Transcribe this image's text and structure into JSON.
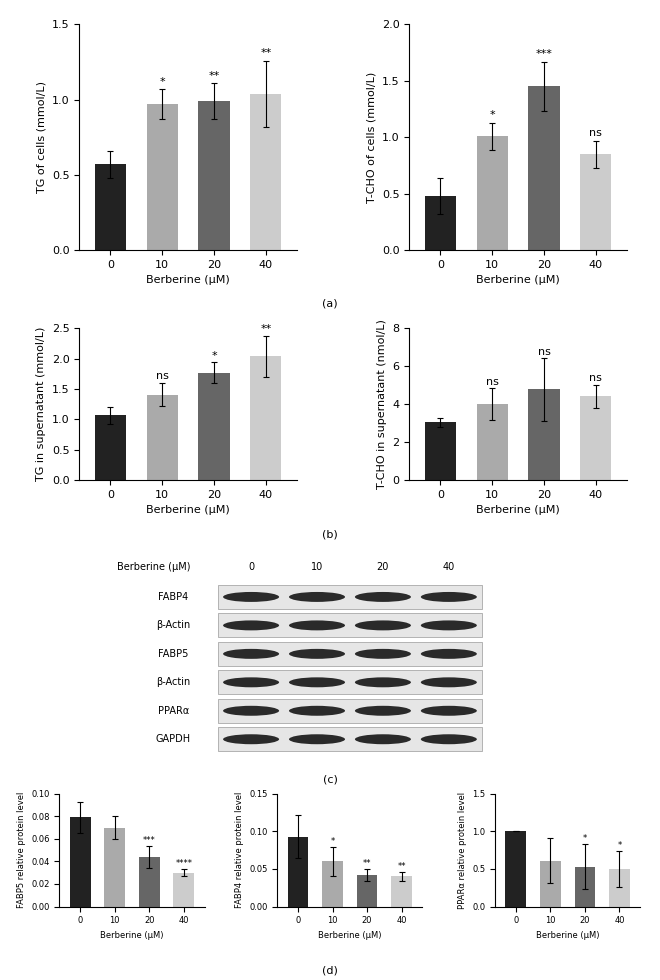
{
  "chart_data": [
    {
      "type": "bar",
      "x_label": "Berberine (μM)",
      "y_label": "TG of cells (mmol/L)",
      "categories": [
        "0",
        "10",
        "20",
        "40"
      ],
      "values": [
        0.57,
        0.97,
        0.99,
        1.04
      ],
      "errors": [
        0.09,
        0.1,
        0.12,
        0.22
      ],
      "annotations": [
        null,
        "*",
        "**",
        "**"
      ],
      "colors": [
        "#222222",
        "#aaaaaa",
        "#666666",
        "#cccccc"
      ],
      "ylim": [
        0.0,
        1.5
      ],
      "yticks": [
        0.0,
        0.5,
        1.0,
        1.5
      ]
    },
    {
      "type": "bar",
      "x_label": "Berberine (μM)",
      "y_label": "T-CHO of cells (mmol/L)",
      "categories": [
        "0",
        "10",
        "20",
        "40"
      ],
      "values": [
        0.48,
        1.01,
        1.45,
        0.85
      ],
      "errors": [
        0.16,
        0.12,
        0.22,
        0.12
      ],
      "annotations": [
        null,
        "*",
        "***",
        "ns"
      ],
      "colors": [
        "#222222",
        "#aaaaaa",
        "#666666",
        "#cccccc"
      ],
      "ylim": [
        0.0,
        2.0
      ],
      "yticks": [
        0.0,
        0.5,
        1.0,
        1.5,
        2.0
      ]
    },
    {
      "type": "bar",
      "x_label": "Berberine (μM)",
      "y_label": "TG in supernatant (mmol/L)",
      "categories": [
        "0",
        "10",
        "20",
        "40"
      ],
      "values": [
        1.07,
        1.41,
        1.77,
        2.04
      ],
      "errors": [
        0.14,
        0.19,
        0.17,
        0.34
      ],
      "annotations": [
        null,
        "ns",
        "*",
        "**"
      ],
      "colors": [
        "#222222",
        "#aaaaaa",
        "#666666",
        "#cccccc"
      ],
      "ylim": [
        0.0,
        2.5
      ],
      "yticks": [
        0.0,
        0.5,
        1.0,
        1.5,
        2.0,
        2.5
      ]
    },
    {
      "type": "bar",
      "x_label": "Berberine (μM)",
      "y_label": "T-CHO in supernatant (nmol/L)",
      "categories": [
        "0",
        "10",
        "20",
        "40"
      ],
      "values": [
        3.05,
        4.0,
        4.78,
        4.42
      ],
      "errors": [
        0.25,
        0.85,
        1.65,
        0.6
      ],
      "annotations": [
        null,
        "ns",
        "ns",
        "ns"
      ],
      "colors": [
        "#222222",
        "#aaaaaa",
        "#666666",
        "#cccccc"
      ],
      "ylim": [
        0,
        8
      ],
      "yticks": [
        0,
        2,
        4,
        6,
        8
      ]
    },
    {
      "type": "bar",
      "x_label": "Berberine (μM)",
      "y_label": "FABP5 relative protein level",
      "categories": [
        "0",
        "10",
        "20",
        "40"
      ],
      "values": [
        0.079,
        0.07,
        0.044,
        0.03
      ],
      "errors": [
        0.014,
        0.01,
        0.01,
        0.003
      ],
      "annotations": [
        null,
        null,
        "***",
        "****"
      ],
      "colors": [
        "#222222",
        "#aaaaaa",
        "#666666",
        "#cccccc"
      ],
      "ylim": [
        0.0,
        0.1
      ],
      "yticks": [
        {
          "value": 0.0,
          "label": "0.00"
        },
        {
          "value": 0.02,
          "label": "0.02"
        },
        {
          "value": 0.04,
          "label": "0.04"
        },
        {
          "value": 0.06,
          "label": "0.06"
        },
        {
          "value": 0.08,
          "label": "0.08"
        },
        {
          "value": 0.1,
          "label": "0.10"
        }
      ]
    },
    {
      "type": "bar",
      "x_label": "Berberine (μM)",
      "y_label": "FABP4 relative protein level",
      "categories": [
        "0",
        "10",
        "20",
        "40"
      ],
      "values": [
        0.093,
        0.06,
        0.042,
        0.04
      ],
      "errors": [
        0.029,
        0.019,
        0.008,
        0.006
      ],
      "annotations": [
        null,
        "*",
        "**",
        "**"
      ],
      "colors": [
        "#222222",
        "#aaaaaa",
        "#666666",
        "#cccccc"
      ],
      "ylim": [
        0.0,
        0.15
      ],
      "yticks": [
        {
          "value": 0.0,
          "label": "0.00"
        },
        {
          "value": 0.05,
          "label": "0.05"
        },
        {
          "value": 0.1,
          "label": "0.10"
        },
        {
          "value": 0.15,
          "label": "0.15"
        }
      ]
    },
    {
      "type": "bar",
      "x_label": "Berberine (μM)",
      "y_label": "PPARα relative protein level",
      "categories": [
        "0",
        "10",
        "20",
        "40"
      ],
      "values": [
        1.0,
        0.61,
        0.53,
        0.5
      ],
      "errors": [
        0.0,
        0.3,
        0.3,
        0.24
      ],
      "annotations": [
        null,
        null,
        "*",
        "*"
      ],
      "colors": [
        "#222222",
        "#aaaaaa",
        "#666666",
        "#cccccc"
      ],
      "ylim": [
        0.0,
        1.5
      ],
      "yticks": [
        0.0,
        0.5,
        1.0,
        1.5
      ]
    }
  ],
  "panels": [
    "(a)",
    "(b)",
    "(c)",
    "(d)"
  ],
  "blot": {
    "header": "Berberine (μM)",
    "lanes": [
      "0",
      "10",
      "20",
      "40"
    ],
    "rows": [
      "FABP4",
      "β-Actin",
      "FABP5",
      "β-Actin",
      "PPARα",
      "GAPDH"
    ]
  }
}
